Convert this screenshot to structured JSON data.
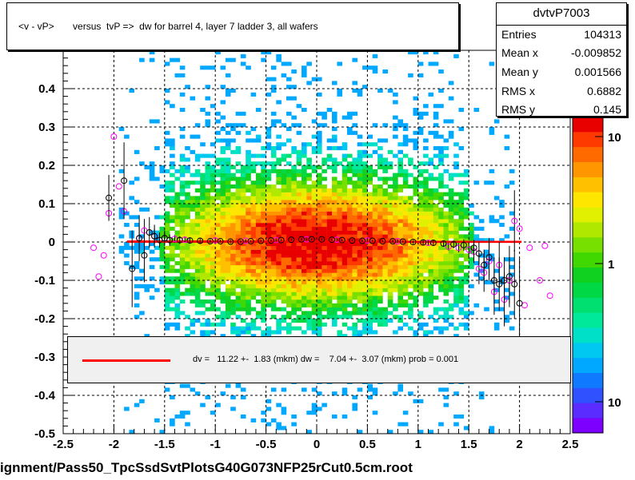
{
  "chart_data": {
    "type": "heatmap",
    "title": "<v - vP>       versus  tvP =>  dw for barrel 4, layer 7 ladder 3, all wafers",
    "xlim": [
      -2.5,
      2.5
    ],
    "ylim": [
      -0.5,
      0.5
    ],
    "x_ticks": [
      "-2.5",
      "-2",
      "-1.5",
      "-1",
      "-0.5",
      "0",
      "0.5",
      "1",
      "1.5",
      "2",
      "2.5"
    ],
    "y_ticks": [
      "-0.5",
      "-0.4",
      "-0.3",
      "-0.2",
      "-0.1",
      "0",
      "0.1",
      "0.2",
      "0.3",
      "0.4"
    ],
    "palette_labels": [
      "10",
      "1",
      "10"
    ],
    "grid": true,
    "histogram": {
      "name": "dvtvP7003",
      "entries_label": "Entries",
      "entries": "104313",
      "meanx_label": "Mean x",
      "meanx": "-0.009852",
      "meany_label": "Mean y",
      "meany": "0.001566",
      "rmsx_label": "RMS x",
      "rmsx": "0.6882",
      "rmsy_label": "RMS y",
      "rmsy": "0.145"
    },
    "fit": {
      "text": "dv =   11.22 +-  1.83 (mkm) dw =    7.04 +-  3.07 (mkm) prob = 0.001",
      "x_range": [
        -1.87,
        2.02
      ],
      "y_start": 0.001,
      "y_end": 0.0007,
      "color": "#ff0000"
    },
    "profile_black": [
      {
        "x": -2.05,
        "y": 0.115,
        "err": 0.06
      },
      {
        "x": -1.9,
        "y": 0.16,
        "err": 0.1
      },
      {
        "x": -1.82,
        "y": -0.07,
        "err": 0.1
      },
      {
        "x": -1.75,
        "y": 0.01,
        "err": 0.06
      },
      {
        "x": -1.7,
        "y": -0.035,
        "err": 0.07
      },
      {
        "x": -1.65,
        "y": 0.025,
        "err": 0.04
      },
      {
        "x": -1.6,
        "y": 0.015,
        "err": 0.03
      },
      {
        "x": -1.55,
        "y": 0.005,
        "err": 0.02
      },
      {
        "x": -1.5,
        "y": 0.01,
        "err": 0.02
      },
      {
        "x": -1.45,
        "y": 0.005,
        "err": 0.015
      },
      {
        "x": -1.35,
        "y": 0.005,
        "err": 0.01
      },
      {
        "x": -1.25,
        "y": 0.004,
        "err": 0.008
      },
      {
        "x": -1.15,
        "y": 0.003,
        "err": 0.006
      },
      {
        "x": -1.05,
        "y": 0.002,
        "err": 0.005
      },
      {
        "x": -0.95,
        "y": 0.002,
        "err": 0.004
      },
      {
        "x": -0.85,
        "y": 0.001,
        "err": 0.004
      },
      {
        "x": -0.75,
        "y": 0.001,
        "err": 0.003
      },
      {
        "x": -0.65,
        "y": 0.002,
        "err": 0.003
      },
      {
        "x": -0.55,
        "y": 0.003,
        "err": 0.003
      },
      {
        "x": -0.45,
        "y": 0.004,
        "err": 0.003
      },
      {
        "x": -0.35,
        "y": 0.005,
        "err": 0.003
      },
      {
        "x": -0.25,
        "y": 0.006,
        "err": 0.003
      },
      {
        "x": -0.15,
        "y": 0.007,
        "err": 0.003
      },
      {
        "x": -0.05,
        "y": 0.007,
        "err": 0.003
      },
      {
        "x": 0.05,
        "y": 0.007,
        "err": 0.003
      },
      {
        "x": 0.15,
        "y": 0.006,
        "err": 0.003
      },
      {
        "x": 0.25,
        "y": 0.005,
        "err": 0.003
      },
      {
        "x": 0.35,
        "y": 0.004,
        "err": 0.003
      },
      {
        "x": 0.45,
        "y": 0.003,
        "err": 0.003
      },
      {
        "x": 0.55,
        "y": 0.003,
        "err": 0.003
      },
      {
        "x": 0.65,
        "y": 0.002,
        "err": 0.003
      },
      {
        "x": 0.75,
        "y": 0.002,
        "err": 0.004
      },
      {
        "x": 0.85,
        "y": 0.001,
        "err": 0.004
      },
      {
        "x": 0.95,
        "y": 0.0,
        "err": 0.005
      },
      {
        "x": 1.05,
        "y": -0.001,
        "err": 0.006
      },
      {
        "x": 1.15,
        "y": -0.002,
        "err": 0.007
      },
      {
        "x": 1.25,
        "y": -0.004,
        "err": 0.008
      },
      {
        "x": 1.35,
        "y": -0.006,
        "err": 0.01
      },
      {
        "x": 1.45,
        "y": -0.008,
        "err": 0.015
      },
      {
        "x": 1.55,
        "y": -0.015,
        "err": 0.02
      },
      {
        "x": 1.6,
        "y": -0.03,
        "err": 0.03
      },
      {
        "x": 1.65,
        "y": -0.06,
        "err": 0.04
      },
      {
        "x": 1.7,
        "y": -0.04,
        "err": 0.05
      },
      {
        "x": 1.75,
        "y": -0.1,
        "err": 0.06
      },
      {
        "x": 1.8,
        "y": -0.11,
        "err": 0.07
      },
      {
        "x": 1.85,
        "y": -0.1,
        "err": 0.06
      },
      {
        "x": 1.9,
        "y": -0.09,
        "err": 0.08
      },
      {
        "x": 1.95,
        "y": -0.11,
        "err": 0.09
      },
      {
        "x": 2.0,
        "y": -0.16,
        "err": 0.12
      }
    ],
    "profile_magenta": [
      {
        "x": -2.2,
        "y": -0.015,
        "err": 0.0
      },
      {
        "x": -2.15,
        "y": -0.09,
        "err": 0.0
      },
      {
        "x": -2.1,
        "y": -0.035,
        "err": 0.0
      },
      {
        "x": -2.05,
        "y": 0.075,
        "err": 0.0
      },
      {
        "x": -2.0,
        "y": 0.275,
        "err": 0.0
      },
      {
        "x": -1.95,
        "y": 0.145,
        "err": 0.0
      },
      {
        "x": -1.9,
        "y": 0.08,
        "err": 0.0
      },
      {
        "x": -1.75,
        "y": 0.01,
        "err": 0.03
      },
      {
        "x": -1.7,
        "y": 0.03,
        "err": 0.03
      },
      {
        "x": -1.6,
        "y": 0.015,
        "err": 0.02
      },
      {
        "x": -1.5,
        "y": 0.01,
        "err": 0.01
      },
      {
        "x": -1.4,
        "y": 0.008,
        "err": 0.01
      },
      {
        "x": -1.3,
        "y": 0.006,
        "err": 0.008
      },
      {
        "x": -1.0,
        "y": 0.004,
        "err": 0.005
      },
      {
        "x": -0.7,
        "y": 0.003,
        "err": 0.004
      },
      {
        "x": -0.4,
        "y": 0.005,
        "err": 0.003
      },
      {
        "x": -0.1,
        "y": 0.007,
        "err": 0.003
      },
      {
        "x": 0.2,
        "y": 0.006,
        "err": 0.003
      },
      {
        "x": 0.5,
        "y": 0.004,
        "err": 0.003
      },
      {
        "x": 0.8,
        "y": 0.002,
        "err": 0.004
      },
      {
        "x": 1.1,
        "y": -0.002,
        "err": 0.006
      },
      {
        "x": 1.3,
        "y": -0.012,
        "err": 0.01
      },
      {
        "x": 1.4,
        "y": -0.015,
        "err": 0.012
      },
      {
        "x": 1.5,
        "y": -0.02,
        "err": 0.02
      },
      {
        "x": 1.55,
        "y": -0.025,
        "err": 0.03
      },
      {
        "x": 1.6,
        "y": -0.07,
        "err": 0.04
      },
      {
        "x": 1.65,
        "y": -0.08,
        "err": 0.05
      },
      {
        "x": 1.7,
        "y": -0.05,
        "err": 0.05
      },
      {
        "x": 1.75,
        "y": -0.13,
        "err": 0.06
      },
      {
        "x": 1.8,
        "y": -0.06,
        "err": 0.06
      },
      {
        "x": 1.85,
        "y": -0.15,
        "err": 0.07
      },
      {
        "x": 1.9,
        "y": -0.1,
        "err": 0.06
      },
      {
        "x": 1.95,
        "y": 0.055,
        "err": 0.08
      },
      {
        "x": 2.0,
        "y": 0.035,
        "err": 0.0
      },
      {
        "x": 2.05,
        "y": -0.165,
        "err": 0.0
      },
      {
        "x": 2.1,
        "y": -0.015,
        "err": 0.0
      },
      {
        "x": 2.2,
        "y": -0.1,
        "err": 0.0
      },
      {
        "x": 2.25,
        "y": -0.01,
        "err": 0.0
      },
      {
        "x": 2.3,
        "y": -0.14,
        "err": 0.0
      }
    ],
    "colors": {
      "palette": [
        "#7d00ff",
        "#5a2cff",
        "#2f51ff",
        "#0f7aff",
        "#00a8ff",
        "#00c8f0",
        "#00e0c8",
        "#00e89a",
        "#00e070",
        "#00d845",
        "#10d020",
        "#40d800",
        "#78e000",
        "#b0e800",
        "#e0f000",
        "#ffe600",
        "#ffc000",
        "#ff9600",
        "#ff6a00",
        "#ff3a00",
        "#e80000"
      ],
      "profile_black": "#000000",
      "profile_magenta": "#ff00ff"
    }
  },
  "footer": "ignment/Pass50_TpcSsdSvtPlotsG40G073NFP25rCut0.5cm.root"
}
